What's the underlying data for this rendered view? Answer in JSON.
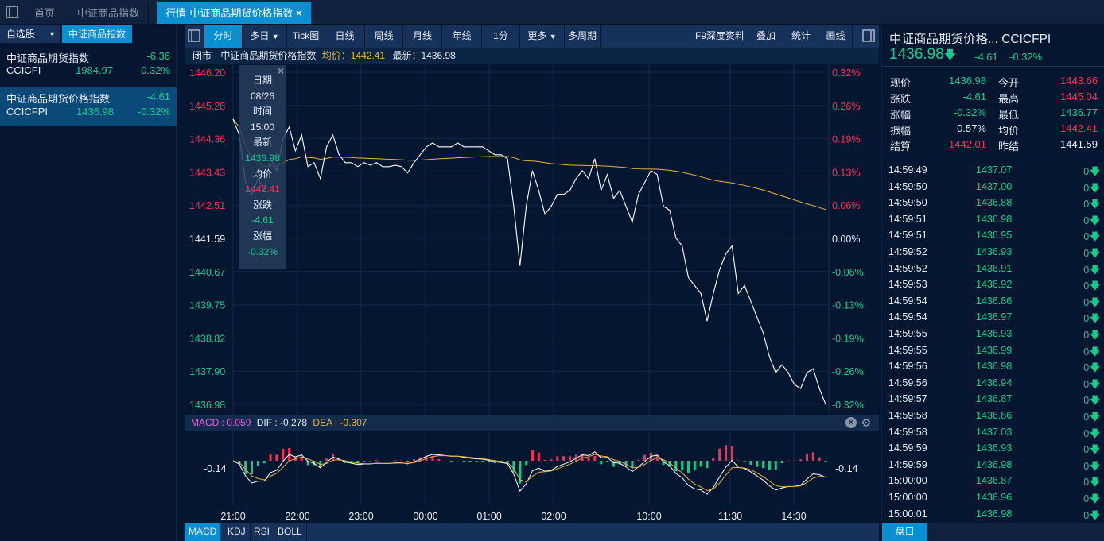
{
  "tabs": {
    "items": [
      "首页",
      "中证商品指数",
      "行情-中证商品期货价格指数"
    ],
    "close": "×"
  },
  "left": {
    "sub_tabs": [
      "自选股",
      "中证商品指数"
    ],
    "items": [
      {
        "name": "中证商品期货指数",
        "code": "CCICFI",
        "price": "1984.97",
        "change": "-6.36",
        "pct": "-0.32%"
      },
      {
        "name": "中证商品期货价格指数",
        "code": "CCICFPI",
        "price": "1436.98",
        "change": "-4.61",
        "pct": "-0.32%"
      }
    ]
  },
  "toolbar": {
    "left": [
      "分时",
      "多日",
      "Tick图",
      "日线",
      "周线",
      "月线",
      "年线",
      "1分",
      "更多",
      "多周期"
    ],
    "right": [
      "F9深度资料",
      "叠加",
      "统计",
      "画线"
    ]
  },
  "info": {
    "status": "闭市",
    "name": "中证商品期货价格指数",
    "avg": "均价：1442.41",
    "last": "最新：1436.98"
  },
  "tooltip": [
    "日期",
    "08/26",
    "时间",
    "15:00",
    "最新",
    "1436.98",
    "均价",
    "1442.41",
    "涨跌",
    "-4.61",
    "涨幅",
    "-0.32%"
  ],
  "colors": {
    "up": "#ff2d55",
    "down": "#17c98a",
    "avg": "#e8b341",
    "accent": "#0a8fd0",
    "bg": "#051630"
  },
  "chart_data": {
    "type": "line",
    "y_ticks": [
      "1446.20",
      "1445.28",
      "1444.36",
      "1443.43",
      "1442.51",
      "1441.59",
      "1440.67",
      "1439.75",
      "1438.82",
      "1437.90",
      "1436.98"
    ],
    "pct_ticks": [
      "0.32%",
      "0.26%",
      "0.19%",
      "0.13%",
      "0.06%",
      "0.00%",
      "-0.06%",
      "-0.13%",
      "-0.19%",
      "-0.26%",
      "-0.32%"
    ],
    "ylim": [
      1436.98,
      1446.2
    ],
    "x_ticks": [
      "21:00",
      "22:00",
      "23:00",
      "00:00",
      "01:00",
      "02:00",
      "10:00",
      "11:30",
      "14:30"
    ],
    "price": [
      1444.9,
      1444.46,
      1443.14,
      1442.81,
      1443.25,
      1442.92,
      1443.8,
      1443.47,
      1444.35,
      1444.68,
      1444.02,
      1444.46,
      1443.58,
      1443.69,
      1443.25,
      1444.13,
      1444.46,
      1443.91,
      1443.69,
      1443.69,
      1443.58,
      1443.69,
      1443.62,
      1443.69,
      1443.58,
      1443.58,
      1443.62,
      1443.58,
      1443.41,
      1443.69,
      1443.91,
      1444.13,
      1444.24,
      1444.13,
      1444.13,
      1444.13,
      1444.24,
      1444.13,
      1444.13,
      1444.13,
      1444.13,
      1444.02,
      1443.91,
      1443.91,
      1443.8,
      1442.48,
      1440.83,
      1442.48,
      1443.47,
      1442.92,
      1442.26,
      1442.48,
      1442.81,
      1442.81,
      1442.92,
      1443.25,
      1443.47,
      1443.25,
      1443.8,
      1442.92,
      1443.36,
      1442.7,
      1442.92,
      1442.48,
      1442.04,
      1442.81,
      1443.14,
      1443.47,
      1443.36,
      1442.48,
      1442.37,
      1441.6,
      1441.38,
      1440.5,
      1440.28,
      1440.06,
      1439.29,
      1440.06,
      1440.72,
      1441.16,
      1441.38,
      1440.06,
      1440.28,
      1439.84,
      1439.4,
      1438.96,
      1438.3,
      1437.86,
      1438.08,
      1437.86,
      1437.53,
      1437.42,
      1437.86,
      1437.97,
      1437.42,
      1436.98
    ]
  },
  "macd": {
    "macd": "MACD : 0.059",
    "dif": "DIF : -0.278",
    "dea": "DEA : -0.307",
    "tick": "-0.14"
  },
  "bottom_tabs": [
    "MACD",
    "KDJ",
    "RSI",
    "BOLL"
  ],
  "quote": {
    "title": "中证商品期货价格... CCICFPI",
    "price": "1436.98",
    "change": "-4.61",
    "pct": "-0.32%",
    "rows": [
      [
        "现价",
        "1436.98",
        "今开",
        "1443.66"
      ],
      [
        "涨跌",
        "-4.61",
        "最高",
        "1445.04"
      ],
      [
        "涨幅",
        "-0.32%",
        "最低",
        "1436.77"
      ],
      [
        "振幅",
        "0.57%",
        "均价",
        "1442.41"
      ],
      [
        "结算",
        "1442.01",
        "昨结",
        "1441.59"
      ]
    ]
  },
  "ticks": [
    [
      "14:59:49",
      "1437.07",
      "0"
    ],
    [
      "14:59:50",
      "1437.00",
      "0"
    ],
    [
      "14:59:50",
      "1436.88",
      "0"
    ],
    [
      "14:59:51",
      "1436.98",
      "0"
    ],
    [
      "14:59:51",
      "1436.95",
      "0"
    ],
    [
      "14:59:52",
      "1436.93",
      "0"
    ],
    [
      "14:59:52",
      "1436.91",
      "0"
    ],
    [
      "14:59:53",
      "1436.92",
      "0"
    ],
    [
      "14:59:54",
      "1436.86",
      "0"
    ],
    [
      "14:59:54",
      "1436.97",
      "0"
    ],
    [
      "14:59:55",
      "1436.93",
      "0"
    ],
    [
      "14:59:55",
      "1436.99",
      "0"
    ],
    [
      "14:59:56",
      "1436.98",
      "0"
    ],
    [
      "14:59:56",
      "1436.94",
      "0"
    ],
    [
      "14:59:57",
      "1436.87",
      "0"
    ],
    [
      "14:59:58",
      "1436.86",
      "0"
    ],
    [
      "14:59:58",
      "1437.03",
      "0"
    ],
    [
      "14:59:59",
      "1436.93",
      "0"
    ],
    [
      "14:59:59",
      "1436.98",
      "0"
    ],
    [
      "15:00:00",
      "1436.87",
      "0"
    ],
    [
      "15:00:00",
      "1436.96",
      "0"
    ],
    [
      "15:00:01",
      "1436.98",
      "0"
    ]
  ],
  "right_tab": "盘口"
}
